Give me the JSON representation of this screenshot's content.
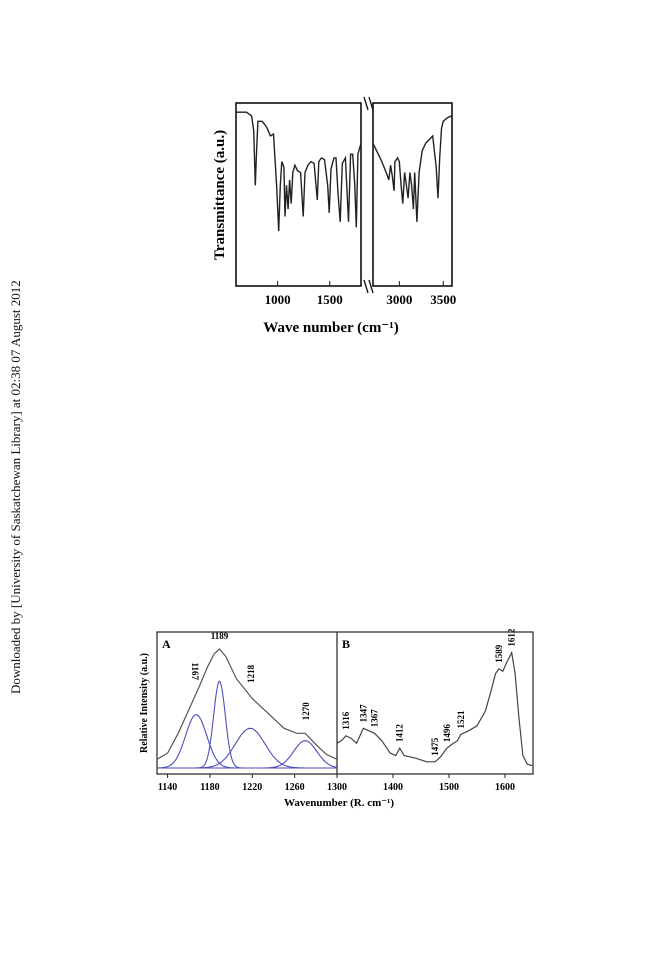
{
  "side_note": "Downloaded by [University of Saskatchewan Library] at 02:38 07 August 2012",
  "chart_data": [
    {
      "type": "line",
      "title": "",
      "xlabel": "Wave number (cm⁻¹)",
      "ylabel": "Transmittance (a.u.)",
      "broken_x_axis": true,
      "segments": [
        {
          "xlim": [
            600,
            1800
          ],
          "ticks": [
            1000,
            1500
          ]
        },
        {
          "xlim": [
            2700,
            3600
          ],
          "ticks": [
            3000,
            3500
          ]
        }
      ],
      "series": [
        {
          "points_seg1": [
            [
              600,
              0.95
            ],
            [
              700,
              0.95
            ],
            [
              750,
              0.93
            ],
            [
              770,
              0.85
            ],
            [
              785,
              0.55
            ],
            [
              795,
              0.7
            ],
            [
              810,
              0.9
            ],
            [
              850,
              0.9
            ],
            [
              880,
              0.88
            ],
            [
              900,
              0.86
            ],
            [
              930,
              0.82
            ],
            [
              960,
              0.83
            ],
            [
              990,
              0.55
            ],
            [
              1010,
              0.3
            ],
            [
              1025,
              0.55
            ],
            [
              1040,
              0.68
            ],
            [
              1060,
              0.65
            ],
            [
              1070,
              0.38
            ],
            [
              1085,
              0.55
            ],
            [
              1100,
              0.42
            ],
            [
              1115,
              0.58
            ],
            [
              1130,
              0.45
            ],
            [
              1145,
              0.62
            ],
            [
              1165,
              0.66
            ],
            [
              1190,
              0.63
            ],
            [
              1220,
              0.62
            ],
            [
              1245,
              0.38
            ],
            [
              1262,
              0.62
            ],
            [
              1290,
              0.66
            ],
            [
              1320,
              0.68
            ],
            [
              1350,
              0.67
            ],
            [
              1380,
              0.47
            ],
            [
              1395,
              0.68
            ],
            [
              1420,
              0.7
            ],
            [
              1450,
              0.69
            ],
            [
              1480,
              0.55
            ],
            [
              1495,
              0.4
            ],
            [
              1512,
              0.64
            ],
            [
              1540,
              0.7
            ],
            [
              1560,
              0.7
            ],
            [
              1580,
              0.5
            ],
            [
              1600,
              0.35
            ],
            [
              1620,
              0.67
            ],
            [
              1650,
              0.7
            ],
            [
              1680,
              0.35
            ],
            [
              1700,
              0.72
            ],
            [
              1720,
              0.72
            ],
            [
              1740,
              0.55
            ],
            [
              1755,
              0.32
            ],
            [
              1770,
              0.72
            ],
            [
              1800,
              0.78
            ]
          ],
          "points_seg2": [
            [
              2700,
              0.78
            ],
            [
              2760,
              0.72
            ],
            [
              2800,
              0.68
            ],
            [
              2850,
              0.62
            ],
            [
              2880,
              0.58
            ],
            [
              2900,
              0.66
            ],
            [
              2920,
              0.6
            ],
            [
              2940,
              0.52
            ],
            [
              2950,
              0.68
            ],
            [
              2980,
              0.7
            ],
            [
              3000,
              0.68
            ],
            [
              3020,
              0.55
            ],
            [
              3040,
              0.45
            ],
            [
              3060,
              0.62
            ],
            [
              3080,
              0.55
            ],
            [
              3100,
              0.48
            ],
            [
              3120,
              0.62
            ],
            [
              3140,
              0.55
            ],
            [
              3160,
              0.42
            ],
            [
              3175,
              0.62
            ],
            [
              3200,
              0.35
            ],
            [
              3225,
              0.62
            ],
            [
              3260,
              0.74
            ],
            [
              3300,
              0.78
            ],
            [
              3340,
              0.8
            ],
            [
              3380,
              0.82
            ],
            [
              3420,
              0.65
            ],
            [
              3440,
              0.48
            ],
            [
              3460,
              0.7
            ],
            [
              3480,
              0.86
            ],
            [
              3500,
              0.9
            ],
            [
              3550,
              0.92
            ],
            [
              3600,
              0.93
            ]
          ]
        }
      ]
    },
    {
      "type": "line",
      "panel": "A",
      "title": "A",
      "xlabel": "Wavenumber (R. cm⁻¹)",
      "ylabel": "Relative Intensity (a.u.)",
      "xlim": [
        1130,
        1300
      ],
      "xticks": [
        1140,
        1180,
        1220,
        1260,
        1300
      ],
      "annotations": [
        {
          "x": 1167,
          "label": "1167",
          "rotated": true
        },
        {
          "x": 1189,
          "label": "1189",
          "rotated": false
        },
        {
          "x": 1218,
          "label": "1218",
          "rotated": true
        },
        {
          "x": 1270,
          "label": "1270",
          "rotated": true
        }
      ],
      "series": [
        {
          "role": "envelope",
          "points": [
            [
              1130,
              0.07
            ],
            [
              1140,
              0.12
            ],
            [
              1150,
              0.28
            ],
            [
              1160,
              0.47
            ],
            [
              1170,
              0.66
            ],
            [
              1178,
              0.82
            ],
            [
              1184,
              0.92
            ],
            [
              1189,
              0.96
            ],
            [
              1195,
              0.9
            ],
            [
              1205,
              0.72
            ],
            [
              1220,
              0.56
            ],
            [
              1235,
              0.44
            ],
            [
              1250,
              0.32
            ],
            [
              1262,
              0.28
            ],
            [
              1270,
              0.28
            ],
            [
              1280,
              0.19
            ],
            [
              1290,
              0.11
            ],
            [
              1300,
              0.07
            ]
          ]
        },
        {
          "role": "fitted-peak",
          "center": 1167,
          "height": 0.43,
          "width": 10
        },
        {
          "role": "fitted-peak",
          "center": 1189,
          "height": 0.7,
          "width": 5.5
        },
        {
          "role": "fitted-peak",
          "center": 1218,
          "height": 0.32,
          "width": 14
        },
        {
          "role": "fitted-peak",
          "center": 1270,
          "height": 0.22,
          "width": 11
        }
      ]
    },
    {
      "type": "line",
      "panel": "B",
      "title": "B",
      "xlabel": "Wavenumber (R. cm⁻¹)",
      "xlim": [
        1300,
        1650
      ],
      "xticks": [
        1400,
        1500,
        1600
      ],
      "annotations": [
        {
          "x": 1316,
          "label": "1316"
        },
        {
          "x": 1347,
          "label": "1347"
        },
        {
          "x": 1367,
          "label": "1367"
        },
        {
          "x": 1412,
          "label": "1412"
        },
        {
          "x": 1475,
          "label": "1475"
        },
        {
          "x": 1496,
          "label": "1496"
        },
        {
          "x": 1521,
          "label": "1521"
        },
        {
          "x": 1589,
          "label": "1589"
        },
        {
          "x": 1612,
          "label": "1612"
        }
      ],
      "series": [
        {
          "role": "spectrum",
          "points": [
            [
              1300,
              0.2
            ],
            [
              1308,
              0.22
            ],
            [
              1316,
              0.26
            ],
            [
              1325,
              0.24
            ],
            [
              1335,
              0.2
            ],
            [
              1347,
              0.32
            ],
            [
              1357,
              0.3
            ],
            [
              1367,
              0.28
            ],
            [
              1380,
              0.22
            ],
            [
              1395,
              0.12
            ],
            [
              1405,
              0.1
            ],
            [
              1412,
              0.16
            ],
            [
              1420,
              0.1
            ],
            [
              1440,
              0.08
            ],
            [
              1460,
              0.05
            ],
            [
              1475,
              0.05
            ],
            [
              1485,
              0.09
            ],
            [
              1496,
              0.16
            ],
            [
              1505,
              0.19
            ],
            [
              1515,
              0.22
            ],
            [
              1521,
              0.27
            ],
            [
              1535,
              0.3
            ],
            [
              1550,
              0.34
            ],
            [
              1565,
              0.46
            ],
            [
              1575,
              0.62
            ],
            [
              1583,
              0.76
            ],
            [
              1589,
              0.8
            ],
            [
              1596,
              0.78
            ],
            [
              1604,
              0.86
            ],
            [
              1612,
              0.93
            ],
            [
              1618,
              0.76
            ],
            [
              1625,
              0.4
            ],
            [
              1632,
              0.1
            ],
            [
              1640,
              0.03
            ],
            [
              1648,
              0.02
            ]
          ]
        }
      ]
    }
  ]
}
